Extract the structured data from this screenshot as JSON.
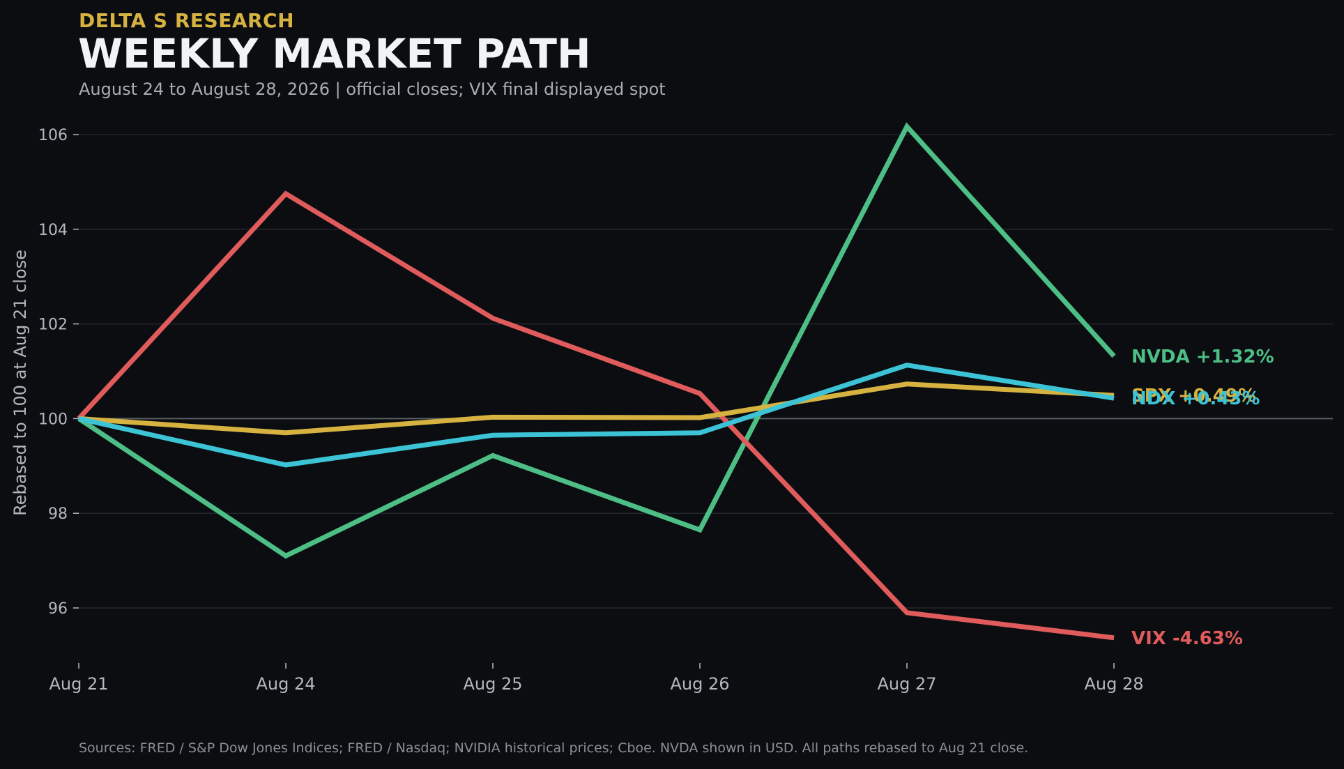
{
  "header": {
    "brand": "DELTA S RESEARCH",
    "title": "WEEKLY MARKET PATH",
    "subtitle": "August 24 to August 28, 2026 | official closes; VIX final displayed spot"
  },
  "footer": {
    "sources": "Sources: FRED / S&P Dow Jones Indices; FRED / Nasdaq; NVIDIA historical prices; Cboe. NVDA shown in USD. All paths rebased to Aug 21 close."
  },
  "colors": {
    "background": "#0b0d10",
    "grid": "#23262b",
    "baseline": "#5a5e64",
    "axis_text": "#b4b8be",
    "brand": "#d6b341"
  },
  "chart_data": {
    "type": "line",
    "title": "WEEKLY MARKET PATH",
    "xlabel": "",
    "ylabel": "Rebased to 100 at Aug 21 close",
    "categories": [
      "Aug 21",
      "Aug 24",
      "Aug 25",
      "Aug 26",
      "Aug 27",
      "Aug 28"
    ],
    "ylim": [
      94.8,
      106.3
    ],
    "yticks": [
      96,
      98,
      100,
      102,
      104,
      106
    ],
    "reference_line": 100,
    "grid": true,
    "legend": "end-of-line labels",
    "series": [
      {
        "name": "NVDA",
        "label": "NVDA +1.32%",
        "color": "#4dbf86",
        "values": [
          100.0,
          97.1,
          99.22,
          97.65,
          106.17,
          101.32
        ]
      },
      {
        "name": "VIX",
        "label": "VIX -4.63%",
        "color": "#e05b5b",
        "values": [
          100.0,
          104.75,
          102.12,
          100.53,
          95.9,
          95.37
        ]
      },
      {
        "name": "SPX",
        "label": "SPX +0.49%",
        "color": "#d6b341",
        "values": [
          100.0,
          99.7,
          100.03,
          100.02,
          100.73,
          100.49
        ]
      },
      {
        "name": "NDX",
        "label": "NDX +0.43%",
        "color": "#3cc3d6",
        "values": [
          100.0,
          99.02,
          99.65,
          99.7,
          101.13,
          100.43
        ]
      }
    ]
  }
}
